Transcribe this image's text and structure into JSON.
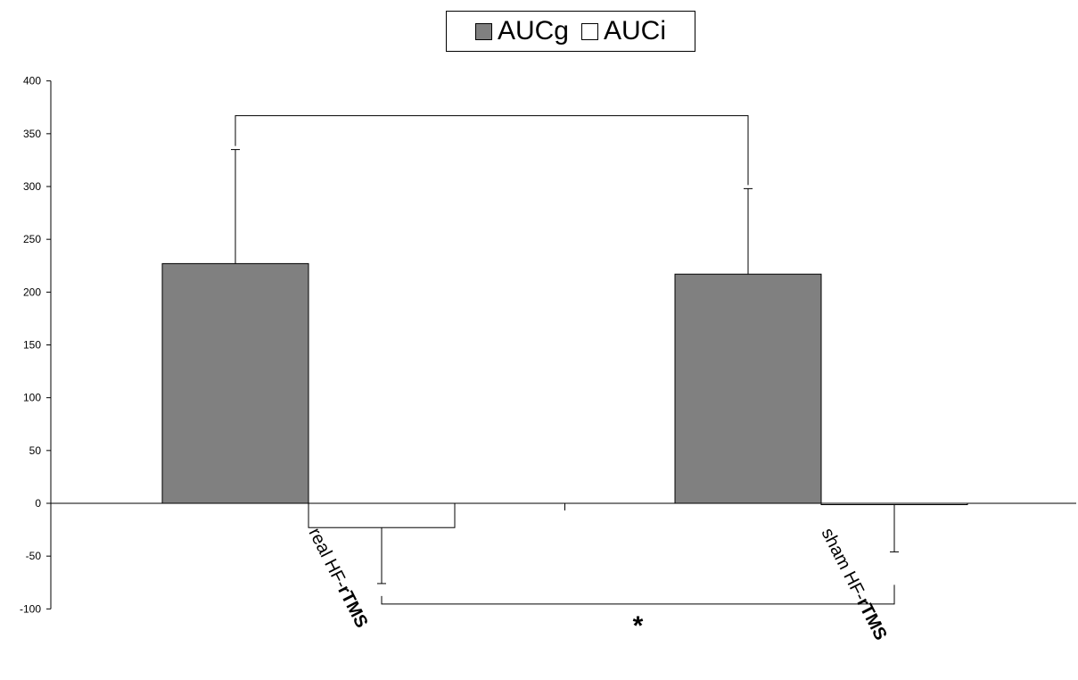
{
  "chart_data": {
    "type": "bar",
    "categories": [
      {
        "plain": "real HF-",
        "bold": "rTMS"
      },
      {
        "plain": "sham HF-",
        "bold": "rTMS"
      }
    ],
    "series": [
      {
        "name": "AUCg",
        "values": [
          227,
          217
        ],
        "errors": [
          108,
          81
        ],
        "color": "#808080"
      },
      {
        "name": "AUCi",
        "values": [
          -23,
          -1
        ],
        "errors": [
          53,
          45
        ],
        "color": "#ffffff"
      }
    ],
    "ylim": [
      -100,
      400
    ],
    "yticks": [
      400,
      350,
      300,
      250,
      200,
      150,
      100,
      50,
      0,
      -50,
      -100
    ],
    "legend_position": "top-center",
    "significance": [
      {
        "series": "AUCg",
        "label": ""
      },
      {
        "series": "AUCi",
        "label": "*"
      }
    ]
  }
}
